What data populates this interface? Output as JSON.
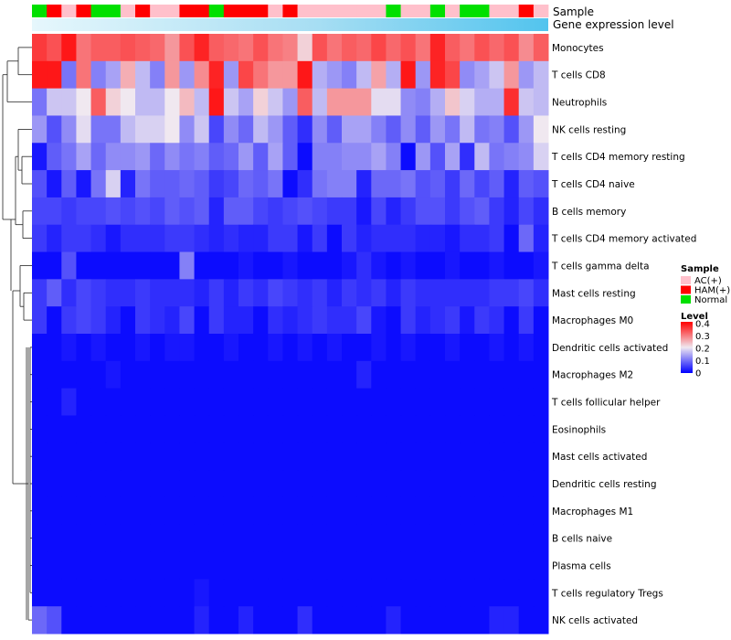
{
  "chart_data": {
    "type": "heatmap",
    "title": "",
    "annotation_labels": {
      "sample": "Sample",
      "gene": "Gene expression level"
    },
    "rows": [
      "Monocytes",
      "T cells CD8",
      "Neutrophils",
      "NK cells resting",
      "T cells CD4 memory resting",
      "T cells CD4 naive",
      "B cells memory",
      "T cells CD4 memory activated",
      "T cells gamma delta",
      "Mast cells resting",
      "Macrophages M0",
      "Dendritic cells activated",
      "Macrophages M2",
      "T cells follicular helper",
      "Eosinophils",
      "Mast cells activated",
      "Dendritic cells resting",
      "Macrophages M1",
      "B cells naive",
      "Plasma cells",
      "T cells regulatory  Tregs",
      "NK cells activated"
    ],
    "sample_groups": [
      "Normal",
      "HAM(+)",
      "AC(+)",
      "HAM(+)",
      "Normal",
      "Normal",
      "AC(+)",
      "HAM(+)",
      "AC(+)",
      "AC(+)",
      "HAM(+)",
      "HAM(+)",
      "Normal",
      "HAM(+)",
      "HAM(+)",
      "HAM(+)",
      "AC(+)",
      "HAM(+)",
      "AC(+)",
      "AC(+)",
      "AC(+)",
      "AC(+)",
      "AC(+)",
      "AC(+)",
      "Normal",
      "AC(+)",
      "AC(+)",
      "Normal",
      "AC(+)",
      "Normal",
      "Normal",
      "AC(+)",
      "AC(+)",
      "HAM(+)",
      "AC(+)"
    ],
    "legend": {
      "sample": {
        "title": "Sample",
        "items": [
          {
            "label": "AC(+)",
            "color": "#ffc0cb"
          },
          {
            "label": "HAM(+)",
            "color": "#ff0000"
          },
          {
            "label": "Normal",
            "color": "#00e000"
          }
        ]
      },
      "level": {
        "title": "Level",
        "ticks": [
          "0.4",
          "0.3",
          "0.2",
          "0.1",
          "0"
        ],
        "range": [
          0,
          0.4
        ]
      }
    },
    "values": [
      [
        0.35,
        0.33,
        0.38,
        0.3,
        0.32,
        0.32,
        0.33,
        0.32,
        0.31,
        0.27,
        0.33,
        0.37,
        0.32,
        0.31,
        0.3,
        0.33,
        0.3,
        0.29,
        0.22,
        0.33,
        0.3,
        0.32,
        0.31,
        0.34,
        0.31,
        0.33,
        0.3,
        0.37,
        0.32,
        0.3,
        0.33,
        0.31,
        0.33,
        0.28,
        0.32
      ],
      [
        0.38,
        0.38,
        0.1,
        0.3,
        0.11,
        0.14,
        0.25,
        0.16,
        0.11,
        0.27,
        0.13,
        0.28,
        0.37,
        0.13,
        0.34,
        0.3,
        0.27,
        0.27,
        0.38,
        0.15,
        0.13,
        0.11,
        0.16,
        0.26,
        0.15,
        0.38,
        0.13,
        0.37,
        0.34,
        0.12,
        0.14,
        0.17,
        0.27,
        0.13,
        0.16
      ],
      [
        0.1,
        0.17,
        0.17,
        0.2,
        0.32,
        0.22,
        0.2,
        0.16,
        0.16,
        0.2,
        0.24,
        0.16,
        0.38,
        0.17,
        0.14,
        0.22,
        0.17,
        0.13,
        0.32,
        0.16,
        0.27,
        0.27,
        0.27,
        0.19,
        0.19,
        0.12,
        0.11,
        0.15,
        0.23,
        0.18,
        0.15,
        0.15,
        0.36,
        0.17,
        0.16
      ],
      [
        0.13,
        0.07,
        0.12,
        0.19,
        0.1,
        0.1,
        0.16,
        0.18,
        0.18,
        0.2,
        0.12,
        0.17,
        0.06,
        0.12,
        0.09,
        0.16,
        0.13,
        0.08,
        0.04,
        0.12,
        0.08,
        0.14,
        0.14,
        0.11,
        0.08,
        0.12,
        0.08,
        0.13,
        0.1,
        0.16,
        0.1,
        0.11,
        0.07,
        0.13,
        0.2
      ],
      [
        0.02,
        0.08,
        0.1,
        0.14,
        0.09,
        0.12,
        0.12,
        0.13,
        0.09,
        0.12,
        0.1,
        0.11,
        0.08,
        0.09,
        0.13,
        0.08,
        0.14,
        0.08,
        0.01,
        0.11,
        0.11,
        0.12,
        0.12,
        0.14,
        0.11,
        0.01,
        0.13,
        0.07,
        0.14,
        0.04,
        0.16,
        0.1,
        0.11,
        0.12,
        0.18
      ],
      [
        0.07,
        0.02,
        0.08,
        0.02,
        0.1,
        0.18,
        0.03,
        0.1,
        0.08,
        0.08,
        0.09,
        0.08,
        0.05,
        0.06,
        0.09,
        0.08,
        0.1,
        0.01,
        0.04,
        0.1,
        0.11,
        0.11,
        0.03,
        0.09,
        0.09,
        0.1,
        0.07,
        0.08,
        0.05,
        0.09,
        0.06,
        0.08,
        0.03,
        0.08,
        0.07
      ],
      [
        0.06,
        0.06,
        0.05,
        0.06,
        0.06,
        0.07,
        0.06,
        0.07,
        0.06,
        0.08,
        0.07,
        0.08,
        0.03,
        0.08,
        0.08,
        0.06,
        0.05,
        0.06,
        0.07,
        0.06,
        0.05,
        0.05,
        0.02,
        0.06,
        0.03,
        0.05,
        0.07,
        0.07,
        0.05,
        0.07,
        0.08,
        0.05,
        0.03,
        0.06,
        0.04
      ],
      [
        0.05,
        0.03,
        0.05,
        0.05,
        0.04,
        0.02,
        0.04,
        0.04,
        0.04,
        0.05,
        0.05,
        0.04,
        0.03,
        0.04,
        0.03,
        0.03,
        0.05,
        0.05,
        0.02,
        0.05,
        0.01,
        0.05,
        0.03,
        0.04,
        0.04,
        0.04,
        0.03,
        0.03,
        0.02,
        0.04,
        0.04,
        0.05,
        0.01,
        0.09,
        0.03
      ],
      [
        0.01,
        0.01,
        0.07,
        0.01,
        0.01,
        0.01,
        0.01,
        0.01,
        0.01,
        0.01,
        0.11,
        0.01,
        0.01,
        0.01,
        0.02,
        0.01,
        0.01,
        0.02,
        0.01,
        0.01,
        0.01,
        0.02,
        0.04,
        0.02,
        0.01,
        0.02,
        0.01,
        0.01,
        0.02,
        0.01,
        0.01,
        0.02,
        0.01,
        0.01,
        0.02
      ],
      [
        0.05,
        0.08,
        0.04,
        0.06,
        0.05,
        0.04,
        0.04,
        0.05,
        0.04,
        0.04,
        0.04,
        0.03,
        0.05,
        0.03,
        0.05,
        0.04,
        0.06,
        0.05,
        0.04,
        0.05,
        0.03,
        0.05,
        0.04,
        0.05,
        0.03,
        0.05,
        0.04,
        0.04,
        0.04,
        0.04,
        0.04,
        0.05,
        0.05,
        0.06,
        0.04
      ],
      [
        0.05,
        0.01,
        0.05,
        0.06,
        0.05,
        0.03,
        0.01,
        0.05,
        0.04,
        0.03,
        0.06,
        0.01,
        0.05,
        0.03,
        0.03,
        0.01,
        0.04,
        0.03,
        0.04,
        0.05,
        0.04,
        0.04,
        0.06,
        0.02,
        0.01,
        0.05,
        0.03,
        0.04,
        0.05,
        0.02,
        0.05,
        0.04,
        0.01,
        0.05,
        0.01
      ],
      [
        0.01,
        0.01,
        0.02,
        0.01,
        0.02,
        0.01,
        0.01,
        0.02,
        0.01,
        0.02,
        0.02,
        0.01,
        0.01,
        0.02,
        0.01,
        0.01,
        0.02,
        0.01,
        0.02,
        0.01,
        0.02,
        0.01,
        0.01,
        0.02,
        0.01,
        0.02,
        0.01,
        0.01,
        0.02,
        0.01,
        0.01,
        0.02,
        0.01,
        0.02,
        0.01
      ],
      [
        0.01,
        0.01,
        0.01,
        0.01,
        0.01,
        0.02,
        0.01,
        0.01,
        0.01,
        0.01,
        0.01,
        0.01,
        0.01,
        0.01,
        0.01,
        0.01,
        0.01,
        0.01,
        0.01,
        0.01,
        0.01,
        0.01,
        0.03,
        0.01,
        0.01,
        0.01,
        0.01,
        0.01,
        0.01,
        0.01,
        0.01,
        0.01,
        0.01,
        0.01,
        0.01
      ],
      [
        0.01,
        0.01,
        0.03,
        0.01,
        0.01,
        0.01,
        0.01,
        0.01,
        0.01,
        0.01,
        0.01,
        0.01,
        0.01,
        0.01,
        0.01,
        0.01,
        0.01,
        0.01,
        0.01,
        0.01,
        0.01,
        0.01,
        0.01,
        0.01,
        0.01,
        0.01,
        0.01,
        0.01,
        0.01,
        0.01,
        0.01,
        0.01,
        0.01,
        0.01,
        0.01
      ],
      [
        0.01,
        0.01,
        0.01,
        0.01,
        0.01,
        0.01,
        0.01,
        0.01,
        0.01,
        0.01,
        0.01,
        0.01,
        0.01,
        0.01,
        0.01,
        0.01,
        0.01,
        0.01,
        0.01,
        0.01,
        0.01,
        0.01,
        0.01,
        0.01,
        0.01,
        0.01,
        0.01,
        0.01,
        0.01,
        0.01,
        0.01,
        0.01,
        0.01,
        0.01,
        0.01
      ],
      [
        0.01,
        0.01,
        0.01,
        0.01,
        0.01,
        0.01,
        0.01,
        0.01,
        0.01,
        0.01,
        0.01,
        0.01,
        0.01,
        0.01,
        0.01,
        0.01,
        0.01,
        0.01,
        0.01,
        0.01,
        0.01,
        0.01,
        0.01,
        0.01,
        0.01,
        0.01,
        0.01,
        0.01,
        0.01,
        0.01,
        0.01,
        0.01,
        0.01,
        0.01,
        0.01
      ],
      [
        0.01,
        0.01,
        0.01,
        0.01,
        0.01,
        0.01,
        0.01,
        0.01,
        0.01,
        0.01,
        0.01,
        0.01,
        0.01,
        0.01,
        0.01,
        0.01,
        0.01,
        0.01,
        0.01,
        0.01,
        0.01,
        0.01,
        0.01,
        0.01,
        0.01,
        0.01,
        0.01,
        0.01,
        0.01,
        0.01,
        0.01,
        0.01,
        0.01,
        0.01,
        0.01
      ],
      [
        0.01,
        0.01,
        0.01,
        0.01,
        0.01,
        0.01,
        0.01,
        0.01,
        0.01,
        0.01,
        0.01,
        0.01,
        0.01,
        0.01,
        0.01,
        0.01,
        0.01,
        0.01,
        0.01,
        0.01,
        0.01,
        0.01,
        0.01,
        0.01,
        0.01,
        0.01,
        0.01,
        0.01,
        0.01,
        0.01,
        0.01,
        0.01,
        0.01,
        0.01,
        0.01
      ],
      [
        0.01,
        0.01,
        0.01,
        0.01,
        0.01,
        0.01,
        0.01,
        0.01,
        0.01,
        0.01,
        0.01,
        0.01,
        0.01,
        0.01,
        0.01,
        0.01,
        0.01,
        0.01,
        0.01,
        0.01,
        0.01,
        0.01,
        0.01,
        0.01,
        0.01,
        0.01,
        0.01,
        0.01,
        0.01,
        0.01,
        0.01,
        0.01,
        0.01,
        0.01,
        0.01
      ],
      [
        0.01,
        0.01,
        0.01,
        0.01,
        0.01,
        0.01,
        0.01,
        0.01,
        0.01,
        0.01,
        0.01,
        0.01,
        0.01,
        0.01,
        0.01,
        0.01,
        0.01,
        0.01,
        0.01,
        0.01,
        0.01,
        0.01,
        0.01,
        0.01,
        0.01,
        0.01,
        0.01,
        0.01,
        0.01,
        0.01,
        0.01,
        0.01,
        0.01,
        0.01,
        0.01
      ],
      [
        0.01,
        0.01,
        0.01,
        0.01,
        0.01,
        0.01,
        0.01,
        0.01,
        0.01,
        0.01,
        0.01,
        0.02,
        0.01,
        0.01,
        0.01,
        0.01,
        0.01,
        0.01,
        0.01,
        0.01,
        0.01,
        0.01,
        0.01,
        0.01,
        0.01,
        0.01,
        0.01,
        0.01,
        0.01,
        0.01,
        0.01,
        0.01,
        0.01,
        0.01,
        0.01
      ],
      [
        0.09,
        0.07,
        0.01,
        0.01,
        0.01,
        0.01,
        0.01,
        0.01,
        0.01,
        0.01,
        0.01,
        0.03,
        0.01,
        0.01,
        0.03,
        0.01,
        0.01,
        0.01,
        0.04,
        0.01,
        0.01,
        0.01,
        0.01,
        0.01,
        0.03,
        0.01,
        0.01,
        0.01,
        0.01,
        0.01,
        0.01,
        0.03,
        0.03,
        0.01,
        0.01
      ]
    ]
  }
}
